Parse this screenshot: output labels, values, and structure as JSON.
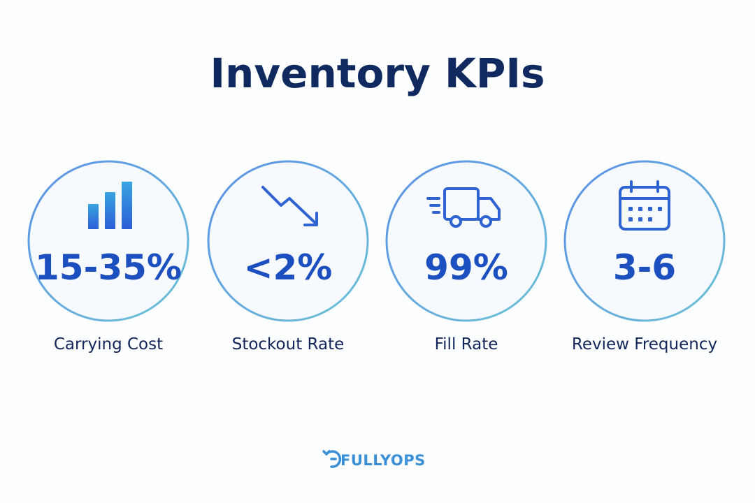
{
  "header": {
    "title": "Inventory KPIs"
  },
  "kpis": [
    {
      "value": "15-35%",
      "label": "Carrying Cost"
    },
    {
      "value": "<2%",
      "label": "Stockout Rate"
    },
    {
      "value": "99%",
      "label": "Fill Rate"
    },
    {
      "value": "3-6",
      "label": "Review Frequency"
    }
  ],
  "footer": {
    "brand": "FULLYOPS"
  }
}
